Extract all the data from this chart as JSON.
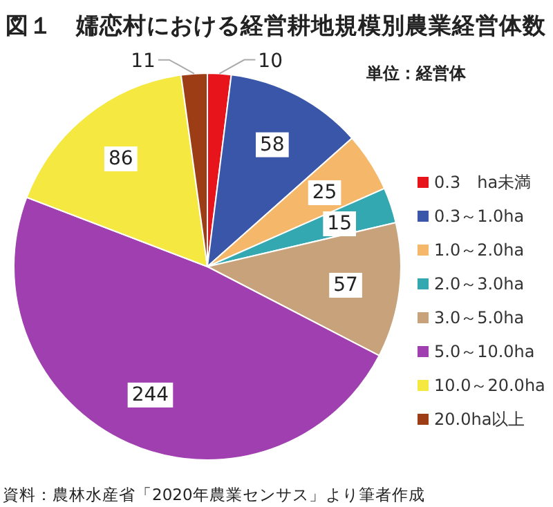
{
  "chart_data": {
    "type": "pie",
    "title": "図１　嬬恋村における経営耕地規模別農業経営体数",
    "categories": [
      "0.3　ha未満",
      "0.3～1.0ha",
      "1.0～2.0ha",
      "2.0～3.0ha",
      "3.0～5.0ha",
      "5.0～10.0ha",
      "10.0～20.0ha",
      "20.0ha以上"
    ],
    "values": [
      10,
      58,
      25,
      15,
      57,
      244,
      86,
      11
    ],
    "colors": [
      "#e8141b",
      "#3a56a8",
      "#f5b86b",
      "#33a8b0",
      "#c8a27a",
      "#a040b0",
      "#f5e840",
      "#9c3d15"
    ],
    "data_labels": true,
    "legend": "right",
    "annotations": [
      "単位：経営体",
      "資料：農林水産省「2020年農業センサス」より筆者作成"
    ]
  }
}
